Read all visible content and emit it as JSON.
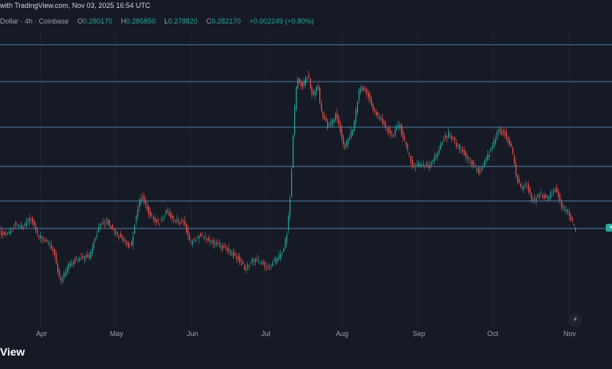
{
  "header": {
    "caption": "with TradingView.com, Nov 03, 2025 16:54 UTC",
    "symbol_desc": "Dollar · 4h · Coinbase",
    "o_label": "O",
    "o_value": "0.280170",
    "h_label": "H",
    "h_value": "0.285850",
    "l_label": "L",
    "l_value": "0.278820",
    "c_label": "C",
    "c_value": "0.282170",
    "change": "+0.002249 (+0.80%)"
  },
  "axis": {
    "months": [
      "Apr",
      "May",
      "Jun",
      "Jul",
      "Aug",
      "Sep",
      "Oct",
      "Nov"
    ]
  },
  "price_tag_icon": "x-icon",
  "footer": {
    "brand": "View"
  },
  "icons": {
    "bolt": "lightning-icon"
  },
  "colors": {
    "background": "#161a25",
    "up": "#26a69a",
    "down": "#ef5350",
    "hline": "#4f7ea8"
  },
  "chart_data": {
    "type": "candlestick",
    "interval": "4h",
    "x_months": [
      "Apr",
      "May",
      "Jun",
      "Jul",
      "Aug",
      "Sep",
      "Oct",
      "Nov"
    ],
    "horizontal_lines_count": 6,
    "last": {
      "open": 0.28017,
      "high": 0.28585,
      "low": 0.27882,
      "close": 0.28217,
      "change": 0.002249,
      "change_pct": 0.8
    }
  }
}
